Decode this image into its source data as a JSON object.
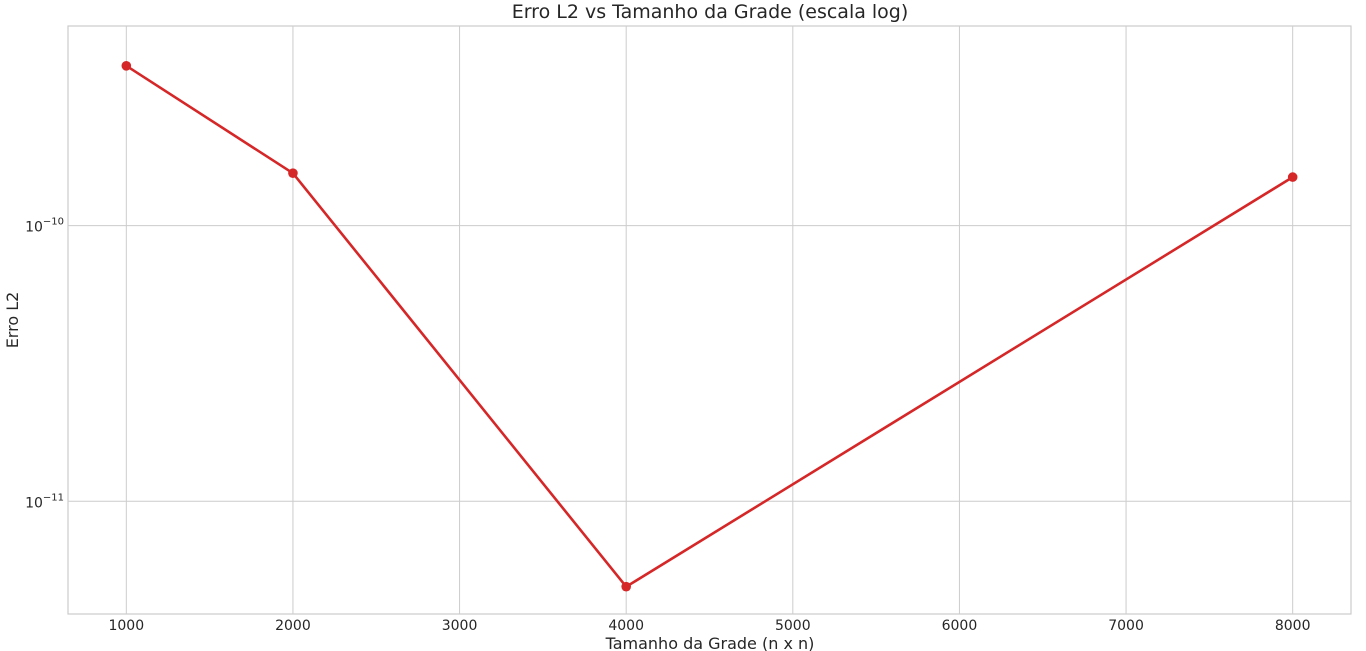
{
  "chart_data": {
    "type": "line",
    "title": "Erro L2 vs Tamanho da Grade (escala log)",
    "xlabel": "Tamanho da Grade (n x n)",
    "ylabel": "Erro L2",
    "x_ticks": [
      1000,
      2000,
      3000,
      4000,
      5000,
      6000,
      7000,
      8000
    ],
    "x_tick_labels": [
      "1000",
      "2000",
      "3000",
      "4000",
      "5000",
      "6000",
      "7000",
      "8000"
    ],
    "xlim": [
      650,
      8350
    ],
    "y_scale": "log",
    "y_ticks": [
      {
        "value": 1e-10,
        "base": "10",
        "exponent": "−10"
      },
      {
        "value": 1e-11,
        "base": "10",
        "exponent": "−11"
      }
    ],
    "ylim": [
      3.9e-12,
      5.3e-10
    ],
    "grid": true,
    "line_color": "#d62728",
    "series": [
      {
        "x": [
          1000,
          2000,
          4000,
          8000
        ],
        "y": [
          3.8e-10,
          1.55e-10,
          4.9e-12,
          1.5e-10
        ]
      }
    ]
  }
}
